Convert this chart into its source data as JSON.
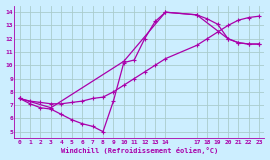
{
  "xlabel": "Windchill (Refroidissement éolien,°C)",
  "background_color": "#cceeff",
  "grid_color": "#aacccc",
  "line_color": "#aa00aa",
  "xlim": [
    -0.5,
    23.5
  ],
  "ylim": [
    4.5,
    14.5
  ],
  "yticks": [
    5,
    6,
    7,
    8,
    9,
    10,
    11,
    12,
    13,
    14
  ],
  "xtick_positions": [
    0,
    1,
    2,
    3,
    4,
    5,
    6,
    7,
    8,
    9,
    10,
    11,
    12,
    13,
    14,
    17,
    18,
    19,
    20,
    21,
    22,
    23
  ],
  "xtick_labels": [
    "0",
    "1",
    "2",
    "3",
    "4",
    "5",
    "6",
    "7",
    "8",
    "9",
    "10",
    "11",
    "12",
    "13",
    "14",
    "17",
    "18",
    "19",
    "20",
    "21",
    "22",
    "23"
  ],
  "series1_x": [
    0,
    1,
    2,
    3,
    4,
    5,
    6,
    7,
    8,
    9,
    10,
    11,
    12,
    13,
    14,
    17,
    18,
    19,
    20,
    21,
    22,
    23
  ],
  "series1_y": [
    7.5,
    7.1,
    6.8,
    6.7,
    6.3,
    5.9,
    5.6,
    5.4,
    5.0,
    7.3,
    10.2,
    10.4,
    12.0,
    13.3,
    14.0,
    13.8,
    13.5,
    13.1,
    12.0,
    11.7,
    11.6,
    11.6
  ],
  "series2_x": [
    0,
    1,
    2,
    3,
    4,
    5,
    6,
    7,
    8,
    9,
    10,
    11,
    12,
    13,
    14,
    17,
    18,
    19,
    20,
    21,
    22,
    23
  ],
  "series2_y": [
    7.5,
    7.3,
    7.2,
    7.1,
    7.1,
    7.2,
    7.3,
    7.5,
    7.6,
    8.0,
    8.5,
    9.0,
    9.5,
    10.0,
    10.5,
    11.5,
    12.0,
    12.5,
    13.0,
    13.4,
    13.6,
    13.7
  ],
  "series3_x": [
    0,
    3,
    10,
    14,
    17,
    20,
    21,
    22,
    23
  ],
  "series3_y": [
    7.5,
    6.8,
    10.3,
    14.0,
    13.8,
    12.0,
    11.7,
    11.6,
    11.6
  ]
}
